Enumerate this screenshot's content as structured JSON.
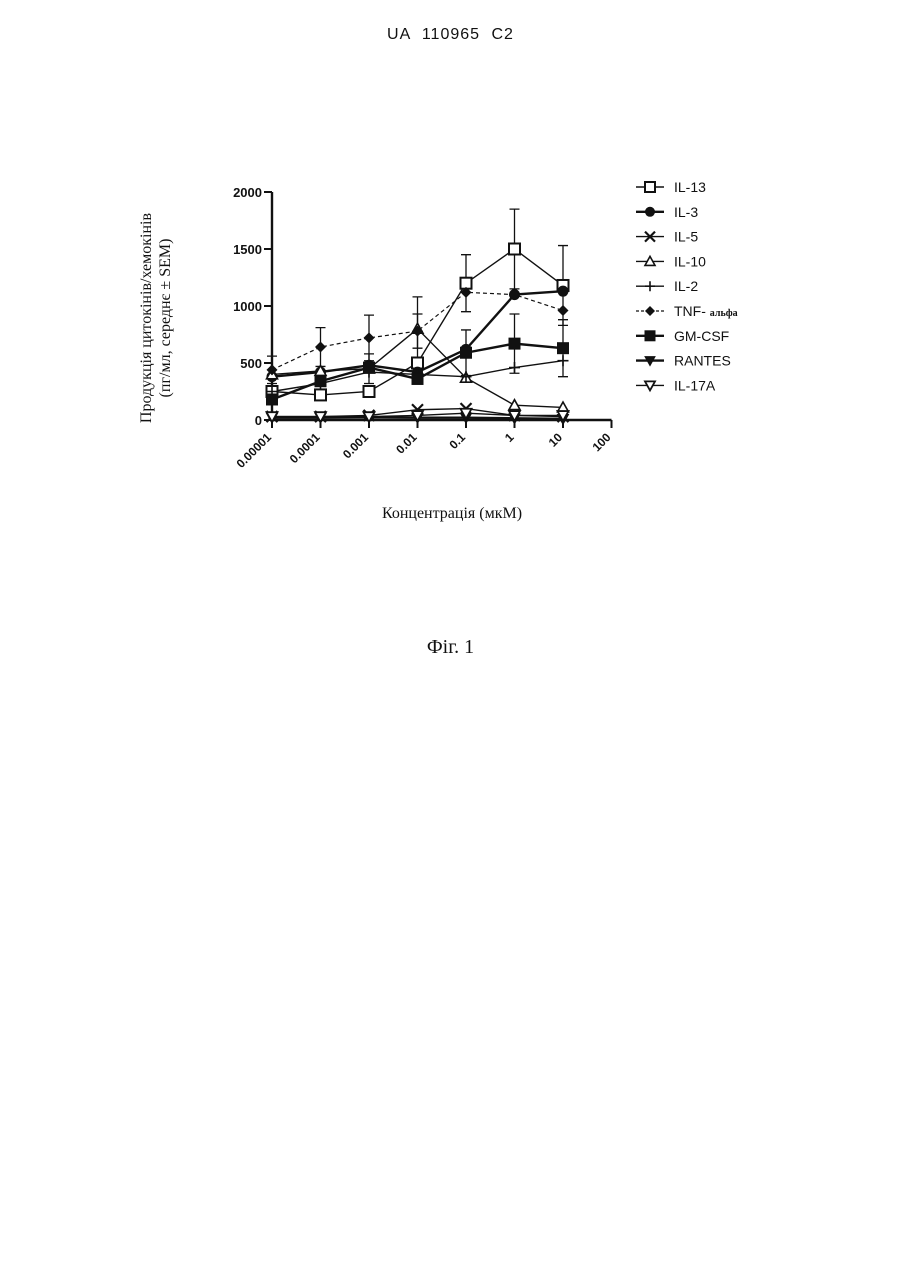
{
  "header": {
    "doc_number": "UA   110965   C2"
  },
  "caption": "Фіг. 1",
  "chart_data": {
    "type": "line",
    "ylabel_line1": "Продукція цитокінів/хемокінів",
    "ylabel_line2": "(пг/мл, середнє ± SEM)",
    "xlabel": "Концентрація (мкМ)",
    "x_scale": "log",
    "x_ticks": [
      "0.00001",
      "0.0001",
      "0.001",
      "0.01",
      "0.1",
      "1",
      "10",
      "100"
    ],
    "x_tick_values": [
      1e-05,
      0.0001,
      0.001,
      0.01,
      0.1,
      1,
      10,
      100
    ],
    "y_ticks": [
      "0",
      "500",
      "1000",
      "1500",
      "2000"
    ],
    "y_tick_values": [
      0,
      500,
      1000,
      1500,
      2000
    ],
    "xlim": [
      1e-05,
      100
    ],
    "ylim": [
      0,
      2000
    ],
    "legend_position": "right",
    "x": [
      1e-05,
      0.0001,
      0.001,
      0.01,
      0.1,
      1,
      10
    ],
    "series": [
      {
        "name": "IL-13",
        "marker": "square-open",
        "line": "solid",
        "values": [
          250,
          220,
          250,
          500,
          1200,
          1500,
          1180
        ],
        "errors": [
          0,
          0,
          0,
          0,
          250,
          350,
          350
        ]
      },
      {
        "name": "IL-3",
        "marker": "circle",
        "line": "solid",
        "values": [
          380,
          420,
          480,
          420,
          620,
          1100,
          1130
        ],
        "errors": [
          0,
          0,
          0,
          0,
          0,
          0,
          0
        ]
      },
      {
        "name": "IL-5",
        "marker": "x",
        "line": "solid",
        "values": [
          30,
          30,
          40,
          90,
          100,
          40,
          30
        ],
        "errors": [
          0,
          0,
          0,
          0,
          0,
          0,
          0
        ]
      },
      {
        "name": "IL-10",
        "marker": "triangle-up-open",
        "line": "solid",
        "values": [
          400,
          430,
          450,
          800,
          370,
          130,
          110
        ],
        "errors": [
          0,
          0,
          130,
          280,
          0,
          0,
          0
        ]
      },
      {
        "name": "IL-2",
        "marker": "plus",
        "line": "solid",
        "values": [
          250,
          320,
          420,
          400,
          380,
          460,
          520
        ],
        "errors": [
          0,
          0,
          0,
          0,
          0,
          0,
          0
        ]
      },
      {
        "name": "TNF- альфа",
        "name_main": "TNF-",
        "name_small": "альфа",
        "marker": "diamond",
        "line": "dashed",
        "values": [
          440,
          640,
          720,
          780,
          1120,
          1100,
          960
        ],
        "errors": [
          120,
          170,
          200,
          150,
          0,
          0,
          0
        ]
      },
      {
        "name": "GM-CSF",
        "marker": "square",
        "line": "solid",
        "values": [
          180,
          340,
          460,
          360,
          590,
          670,
          630
        ],
        "errors": [
          0,
          0,
          0,
          0,
          200,
          260,
          250
        ]
      },
      {
        "name": "RANTES",
        "marker": "triangle-down",
        "line": "solid",
        "values": [
          20,
          20,
          25,
          20,
          20,
          15,
          10
        ],
        "errors": [
          0,
          0,
          0,
          0,
          0,
          0,
          0
        ]
      },
      {
        "name": "IL-17A",
        "marker": "triangle-down-open",
        "line": "solid",
        "values": [
          30,
          30,
          30,
          40,
          60,
          40,
          40
        ],
        "errors": [
          0,
          0,
          0,
          0,
          0,
          0,
          0
        ]
      }
    ]
  }
}
